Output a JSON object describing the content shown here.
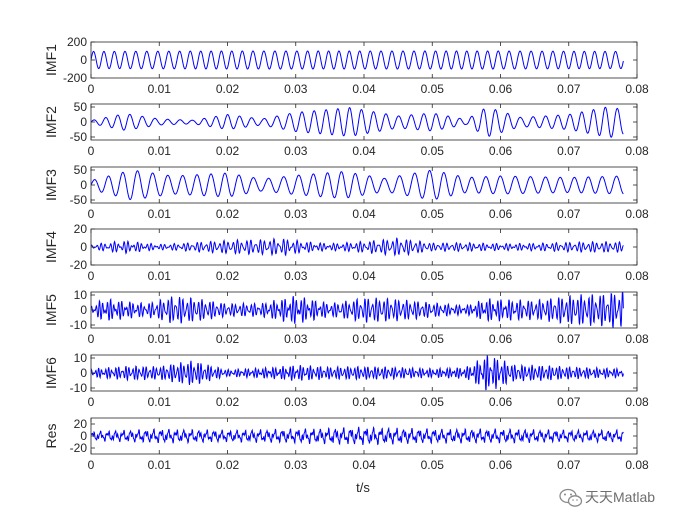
{
  "figure": {
    "xlabel": "t/s",
    "watermark": "天天Matlab",
    "watermark_icon": "wechat-icon",
    "line_color": "#0000ff"
  },
  "chart_data": [
    {
      "type": "line",
      "ylabel": "IMF1",
      "xlim": [
        0,
        0.08
      ],
      "ylim": [
        -200,
        200
      ],
      "yticks": [
        "200",
        "0",
        "-200"
      ],
      "tick_values": [
        200,
        0,
        -200
      ],
      "xticks": [
        "0",
        "0.01",
        "0.02",
        "0.03",
        "0.04",
        "0.05",
        "0.06",
        "0.07",
        "0.08"
      ],
      "signal_xmax": 0.078,
      "dominant_frequency_hz": 640,
      "envelope": [
        [
          0,
          95
        ],
        [
          0.02,
          100
        ],
        [
          0.04,
          100
        ],
        [
          0.06,
          100
        ],
        [
          0.078,
          95
        ]
      ]
    },
    {
      "type": "line",
      "ylabel": "IMF2",
      "xlim": [
        0,
        0.08
      ],
      "ylim": [
        -60,
        60
      ],
      "yticks": [
        "50",
        "0",
        "-50"
      ],
      "tick_values": [
        50,
        0,
        -50
      ],
      "xticks": [
        "0",
        "0.01",
        "0.02",
        "0.03",
        "0.04",
        "0.05",
        "0.06",
        "0.07",
        "0.08"
      ],
      "signal_xmax": 0.078,
      "dominant_frequency_hz": 560,
      "envelope": [
        [
          0,
          5
        ],
        [
          0.005,
          28
        ],
        [
          0.01,
          10
        ],
        [
          0.015,
          6
        ],
        [
          0.02,
          25
        ],
        [
          0.025,
          10
        ],
        [
          0.03,
          32
        ],
        [
          0.038,
          48
        ],
        [
          0.045,
          20
        ],
        [
          0.05,
          30
        ],
        [
          0.055,
          8
        ],
        [
          0.058,
          50
        ],
        [
          0.063,
          15
        ],
        [
          0.07,
          25
        ],
        [
          0.076,
          52
        ],
        [
          0.078,
          40
        ]
      ]
    },
    {
      "type": "line",
      "ylabel": "IMF3",
      "xlim": [
        0,
        0.08
      ],
      "ylim": [
        -60,
        60
      ],
      "yticks": [
        "50",
        "0",
        "-50"
      ],
      "tick_values": [
        50,
        0,
        -50
      ],
      "xticks": [
        "0",
        "0.01",
        "0.02",
        "0.03",
        "0.04",
        "0.05",
        "0.06",
        "0.07",
        "0.08"
      ],
      "signal_xmax": 0.078,
      "dominant_frequency_hz": 470,
      "envelope": [
        [
          0,
          15
        ],
        [
          0.006,
          50
        ],
        [
          0.012,
          30
        ],
        [
          0.02,
          40
        ],
        [
          0.025,
          20
        ],
        [
          0.03,
          32
        ],
        [
          0.037,
          45
        ],
        [
          0.043,
          22
        ],
        [
          0.05,
          50
        ],
        [
          0.055,
          25
        ],
        [
          0.06,
          30
        ],
        [
          0.07,
          25
        ],
        [
          0.078,
          30
        ]
      ]
    },
    {
      "type": "line",
      "ylabel": "IMF4",
      "xlim": [
        0,
        0.08
      ],
      "ylim": [
        -20,
        20
      ],
      "yticks": [
        "20",
        "0",
        "-20"
      ],
      "tick_values": [
        20,
        0,
        -20
      ],
      "xticks": [
        "0",
        "0.01",
        "0.02",
        "0.03",
        "0.04",
        "0.05",
        "0.06",
        "0.07",
        "0.08"
      ],
      "signal_xmax": 0.078,
      "dominant_frequency_hz": 1500,
      "envelope": [
        [
          0,
          2
        ],
        [
          0.005,
          7
        ],
        [
          0.01,
          3
        ],
        [
          0.02,
          5
        ],
        [
          0.025,
          6
        ],
        [
          0.028,
          8
        ],
        [
          0.035,
          4
        ],
        [
          0.045,
          7
        ],
        [
          0.05,
          3
        ],
        [
          0.055,
          4
        ],
        [
          0.06,
          4
        ],
        [
          0.07,
          4
        ],
        [
          0.078,
          4
        ]
      ]
    },
    {
      "type": "line",
      "ylabel": "IMF5",
      "xlim": [
        0,
        0.08
      ],
      "ylim": [
        -12,
        12
      ],
      "yticks": [
        "10",
        "0",
        "-10"
      ],
      "tick_values": [
        10,
        0,
        -10
      ],
      "xticks": [
        "0",
        "0.01",
        "0.02",
        "0.03",
        "0.04",
        "0.05",
        "0.06",
        "0.07",
        "0.08"
      ],
      "signal_xmax": 0.078,
      "dominant_frequency_hz": 1800,
      "envelope": [
        [
          0,
          3
        ],
        [
          0.002,
          8
        ],
        [
          0.008,
          4
        ],
        [
          0.012,
          7
        ],
        [
          0.02,
          3
        ],
        [
          0.025,
          4
        ],
        [
          0.03,
          10
        ],
        [
          0.035,
          4
        ],
        [
          0.04,
          6
        ],
        [
          0.045,
          5
        ],
        [
          0.055,
          3
        ],
        [
          0.058,
          8
        ],
        [
          0.065,
          5
        ],
        [
          0.075,
          8
        ],
        [
          0.078,
          11
        ]
      ]
    },
    {
      "type": "line",
      "ylabel": "IMF6",
      "xlim": [
        0,
        0.08
      ],
      "ylim": [
        -12,
        12
      ],
      "yticks": [
        "10",
        "0",
        "-10"
      ],
      "tick_values": [
        10,
        0,
        -10
      ],
      "xticks": [
        "0",
        "0.01",
        "0.02",
        "0.03",
        "0.04",
        "0.05",
        "0.06",
        "0.07",
        "0.08"
      ],
      "signal_xmax": 0.078,
      "dominant_frequency_hz": 2000,
      "envelope": [
        [
          0,
          3
        ],
        [
          0.005,
          4
        ],
        [
          0.01,
          3
        ],
        [
          0.015,
          6
        ],
        [
          0.02,
          2
        ],
        [
          0.03,
          5
        ],
        [
          0.035,
          3
        ],
        [
          0.04,
          3
        ],
        [
          0.05,
          3
        ],
        [
          0.055,
          4
        ],
        [
          0.058,
          11
        ],
        [
          0.062,
          4
        ],
        [
          0.07,
          3
        ],
        [
          0.078,
          3
        ]
      ]
    },
    {
      "type": "line",
      "ylabel": "Res",
      "xlim": [
        0,
        0.08
      ],
      "ylim": [
        -30,
        30
      ],
      "yticks": [
        "20",
        "0",
        "-20"
      ],
      "tick_values": [
        20,
        0,
        -20
      ],
      "xticks": [
        "0",
        "0.01",
        "0.02",
        "0.03",
        "0.04",
        "0.05",
        "0.06",
        "0.07",
        "0.08"
      ],
      "signal_xmax": 0.078,
      "dominant_frequency_hz": 0,
      "envelope": [
        [
          0,
          8
        ],
        [
          0.01,
          12
        ],
        [
          0.02,
          10
        ],
        [
          0.03,
          12
        ],
        [
          0.04,
          15
        ],
        [
          0.05,
          12
        ],
        [
          0.06,
          12
        ],
        [
          0.07,
          10
        ],
        [
          0.078,
          10
        ]
      ]
    }
  ]
}
